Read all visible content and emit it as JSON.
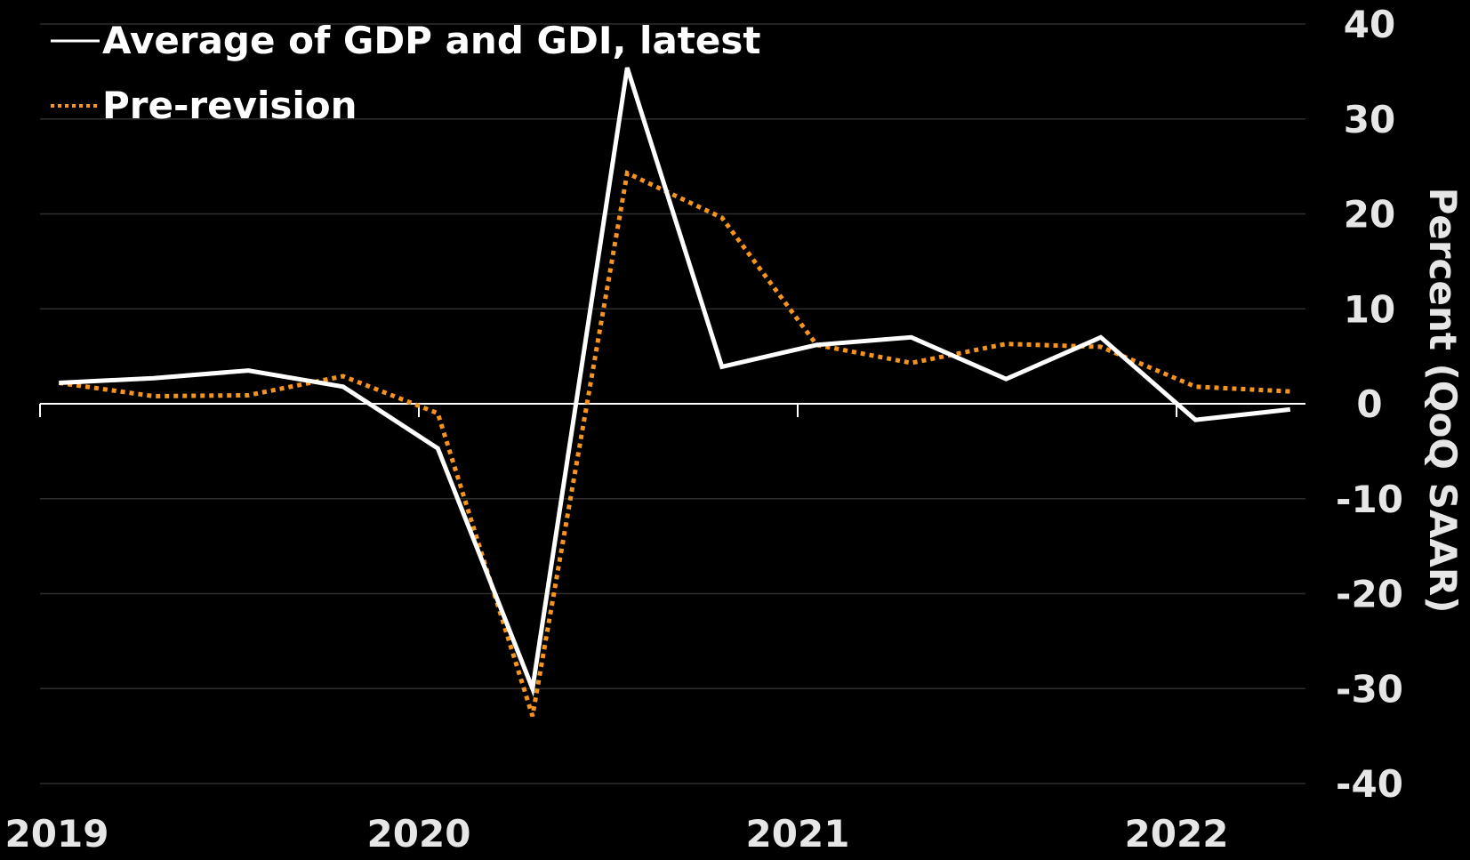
{
  "chart_data": {
    "type": "line",
    "title": "",
    "xlabel": "",
    "ylabel": "Percent (QoQ SAAR)",
    "ylim": [
      -40,
      40
    ],
    "yticks": [
      "40",
      "30",
      "20",
      "10",
      "0",
      "-10",
      "-20",
      "-30",
      "-40"
    ],
    "xticks": [
      "2019",
      "2020",
      "2021",
      "2022"
    ],
    "x": [
      "2019 Q1",
      "2019 Q2",
      "2019 Q3",
      "2019 Q4",
      "2020 Q1",
      "2020 Q2",
      "2020 Q3",
      "2020 Q4",
      "2021 Q1",
      "2021 Q2",
      "2021 Q3",
      "2021 Q4",
      "2022 Q1",
      "2022 Q2"
    ],
    "grid": true,
    "legend_position": "top-left",
    "series": [
      {
        "name": "Average of GDP and GDI, latest",
        "color": "#ffffff",
        "style": "solid",
        "values": [
          2.2,
          2.7,
          3.5,
          1.8,
          -4.7,
          -30.0,
          35.4,
          3.9,
          6.2,
          7.0,
          2.6,
          7.0,
          -1.7,
          -0.6
        ]
      },
      {
        "name": "Pre-revision",
        "color": "#f7941d",
        "style": "dotted",
        "values": [
          2.2,
          0.8,
          0.9,
          2.9,
          -1.0,
          -32.9,
          24.3,
          19.6,
          6.2,
          4.3,
          6.3,
          6.0,
          1.8,
          1.3
        ]
      }
    ]
  }
}
